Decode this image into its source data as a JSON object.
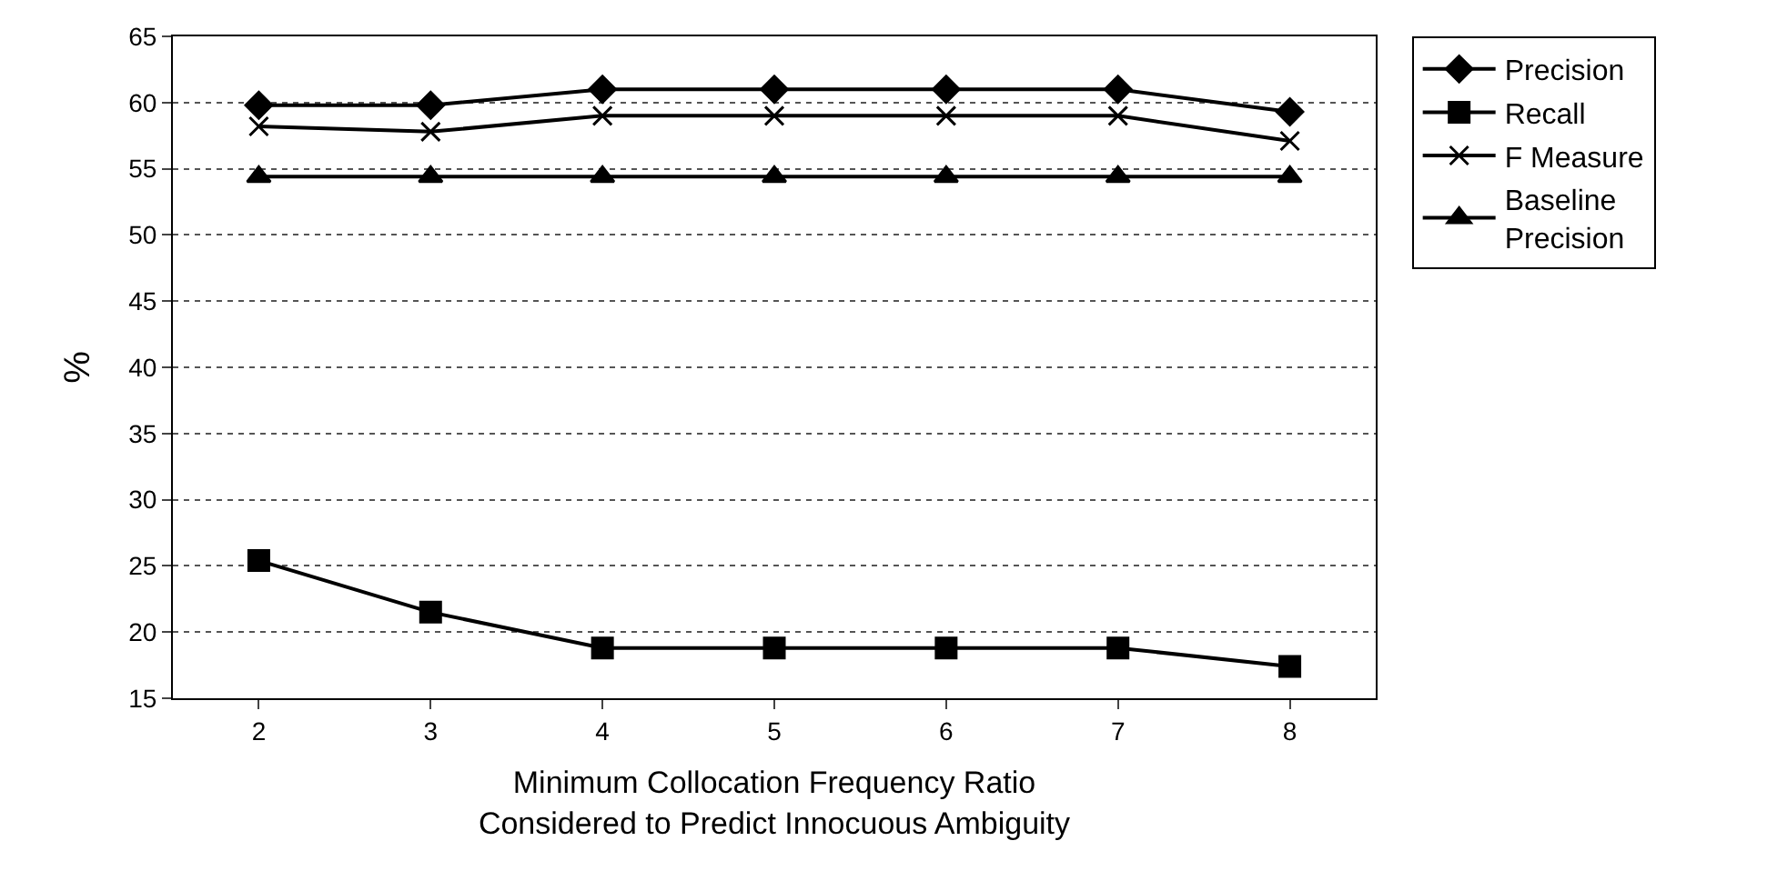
{
  "chart_data": {
    "type": "line",
    "xlabel": "Minimum Collocation Frequency Ratio\nConsidered to Predict Innocuous Ambiguity",
    "ylabel": "%",
    "categories": [
      "2",
      "3",
      "4",
      "5",
      "6",
      "7",
      "8"
    ],
    "series": [
      {
        "name": "Precision",
        "color": "#000000",
        "marker": "diamond",
        "values": [
          59.8,
          59.8,
          61,
          61,
          61,
          61,
          59.3
        ]
      },
      {
        "name": "Recall",
        "color": "#000000",
        "marker": "square",
        "values": [
          25.4,
          21.5,
          18.8,
          18.8,
          18.8,
          18.8,
          17.4
        ]
      },
      {
        "name": "F Measure",
        "color": "#000000",
        "marker": "cross",
        "values": [
          58.2,
          57.8,
          59,
          59,
          59,
          59,
          57.1
        ]
      },
      {
        "name": "Baseline\nPrecision",
        "color": "#000000",
        "marker": "triangle",
        "values": [
          54.4,
          54.4,
          54.4,
          54.4,
          54.4,
          54.4,
          54.4
        ]
      }
    ],
    "ylim": [
      15,
      65
    ],
    "yticks": [
      15,
      20,
      25,
      30,
      35,
      40,
      45,
      50,
      55,
      60,
      65
    ],
    "grid": "y",
    "legend": "right",
    "line_style": "solid"
  }
}
